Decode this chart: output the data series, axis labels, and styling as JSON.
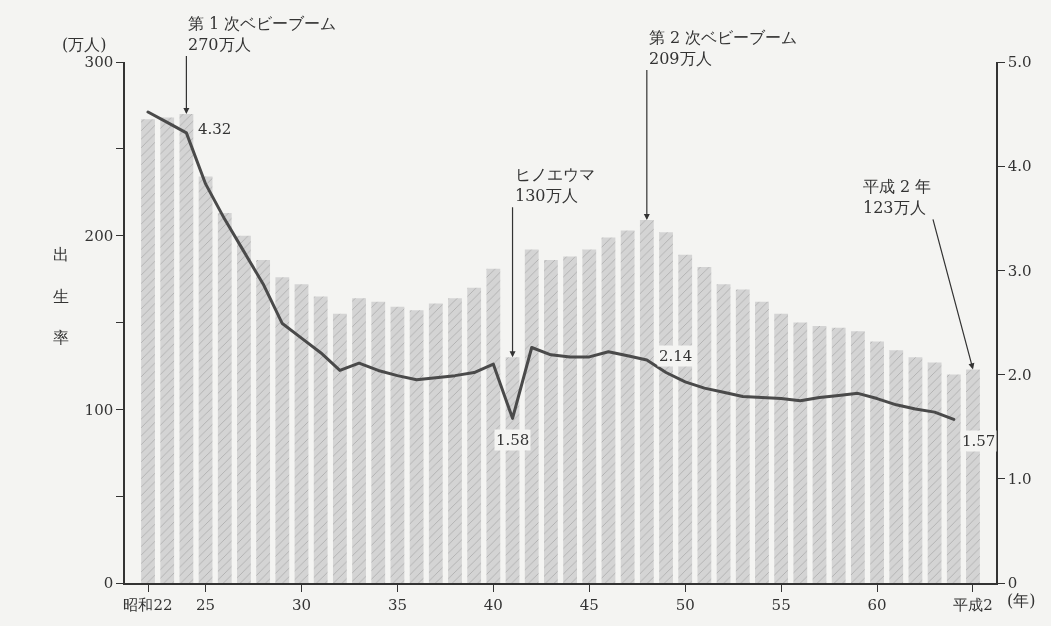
{
  "chart_data": {
    "type": "bar",
    "x": [
      22,
      23,
      24,
      25,
      26,
      27,
      28,
      29,
      30,
      31,
      32,
      33,
      34,
      35,
      36,
      37,
      38,
      39,
      40,
      41,
      42,
      43,
      44,
      45,
      46,
      47,
      48,
      49,
      50,
      51,
      52,
      53,
      54,
      55,
      56,
      57,
      58,
      59,
      60,
      61,
      62,
      63,
      64,
      65
    ],
    "series": [
      {
        "color": "#d4d4d4",
        "values": [
          267,
          268,
          270,
          234,
          213,
          200,
          186,
          176,
          172,
          165,
          155,
          164,
          162,
          159,
          157,
          161,
          164,
          170,
          181,
          130,
          192,
          186,
          188,
          192,
          199,
          203,
          209,
          202,
          189,
          182,
          172,
          169,
          162,
          155,
          150,
          148,
          147,
          145,
          139,
          134,
          130,
          127,
          120,
          123
        ]
      },
      {
        "type": "line",
        "axis": "y2",
        "color": "#4a4a4a",
        "values": [
          4.52,
          4.42,
          4.32,
          3.83,
          3.49,
          3.18,
          2.87,
          2.49,
          2.35,
          2.21,
          2.04,
          2.11,
          2.04,
          1.99,
          1.95,
          1.97,
          1.99,
          2.02,
          2.1,
          1.58,
          2.26,
          2.19,
          2.17,
          2.17,
          2.22,
          2.18,
          2.14,
          2.02,
          1.93,
          1.87,
          1.83,
          1.79,
          1.78,
          1.77,
          1.75,
          1.78,
          1.8,
          1.82,
          1.77,
          1.71,
          1.67,
          1.64,
          1.57,
          null
        ],
        "value_labels": [
          null,
          null,
          "4.32",
          null,
          null,
          null,
          null,
          null,
          null,
          null,
          null,
          null,
          null,
          null,
          null,
          null,
          null,
          null,
          null,
          "1.58",
          null,
          null,
          null,
          null,
          null,
          null,
          "2.14",
          null,
          null,
          null,
          null,
          null,
          null,
          null,
          null,
          null,
          null,
          null,
          null,
          null,
          null,
          null,
          "1.57",
          null
        ]
      }
    ],
    "ylabel": "出生率",
    "xlabel": "(年)",
    "annotations": [
      "(万人)",
      {
        "text": "第 1 次ベビーブーム\n270万人",
        "x": 24,
        "y": 270
      },
      {
        "text": "ヒノエウマ\n130万人",
        "x": 41,
        "y": 130
      },
      {
        "text": "第 2 次ベビーブーム\n209万人",
        "x": 48,
        "y": 209
      },
      {
        "text": "平成 2 年\n123万人",
        "x": 65,
        "y": 123
      }
    ],
    "xlim": [
      20.8,
      66.2
    ],
    "xticks": [
      {
        "value": 22,
        "label": "昭和22"
      },
      25,
      30,
      35,
      40,
      45,
      50,
      55,
      60,
      {
        "value": 65,
        "label": "平成2"
      }
    ],
    "ylim": [
      0,
      300
    ],
    "yticks": [
      0,
      {
        "value": 50,
        "label": null
      },
      100,
      {
        "value": 150,
        "label": null
      },
      200,
      {
        "value": 250,
        "label": null
      },
      300
    ],
    "y2lim": [
      0,
      5
    ],
    "y2ticks": [
      0,
      {
        "value": 1,
        "label": "1.0"
      },
      {
        "value": 2,
        "label": "2.0"
      },
      {
        "value": 3,
        "label": "3.0"
      },
      {
        "value": 4,
        "label": "4.0"
      },
      {
        "value": 5,
        "label": "5.0"
      }
    ],
    "grid": false,
    "legend": false
  }
}
